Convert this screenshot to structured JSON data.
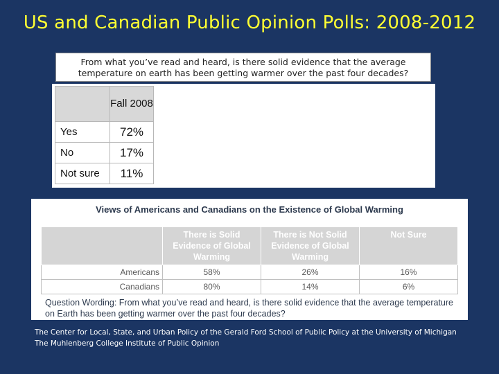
{
  "slide": {
    "title": "US and Canadian  Public Opinion Polls: 2008-2012"
  },
  "question_box": {
    "text": "From what you’ve read and heard, is there solid evidence that the average temperature on earth has been getting warmer over the past four decades?"
  },
  "fall_table": {
    "column_header": "Fall 2008",
    "rows": [
      {
        "label": "Yes",
        "value": "72%"
      },
      {
        "label": "No",
        "value": "17%"
      },
      {
        "label": "Not sure",
        "value": "11%"
      }
    ]
  },
  "views_table": {
    "title": "Views of Americans and Canadians on the Existence of Global Warming",
    "headers": [
      "There is Solid Evidence of Global Warming",
      "There is Not Solid Evidence of Global Warming",
      "Not Sure"
    ],
    "rows": [
      {
        "country": "Americans",
        "values": [
          "58%",
          "26%",
          "16%"
        ]
      },
      {
        "country": "Canadians",
        "values": [
          "80%",
          "14%",
          "6%"
        ]
      }
    ],
    "question": "Question Wording: From what you’ve read and heard, is there solid evidence that the average temperature on Earth has been getting warmer over the past four decades?"
  },
  "citation": {
    "text": "The Center for Local, State, and Urban Policy of the Gerald Ford School of Public Policy at the University of Michigan The Muhlenberg College Institute of Public Opinion"
  }
}
